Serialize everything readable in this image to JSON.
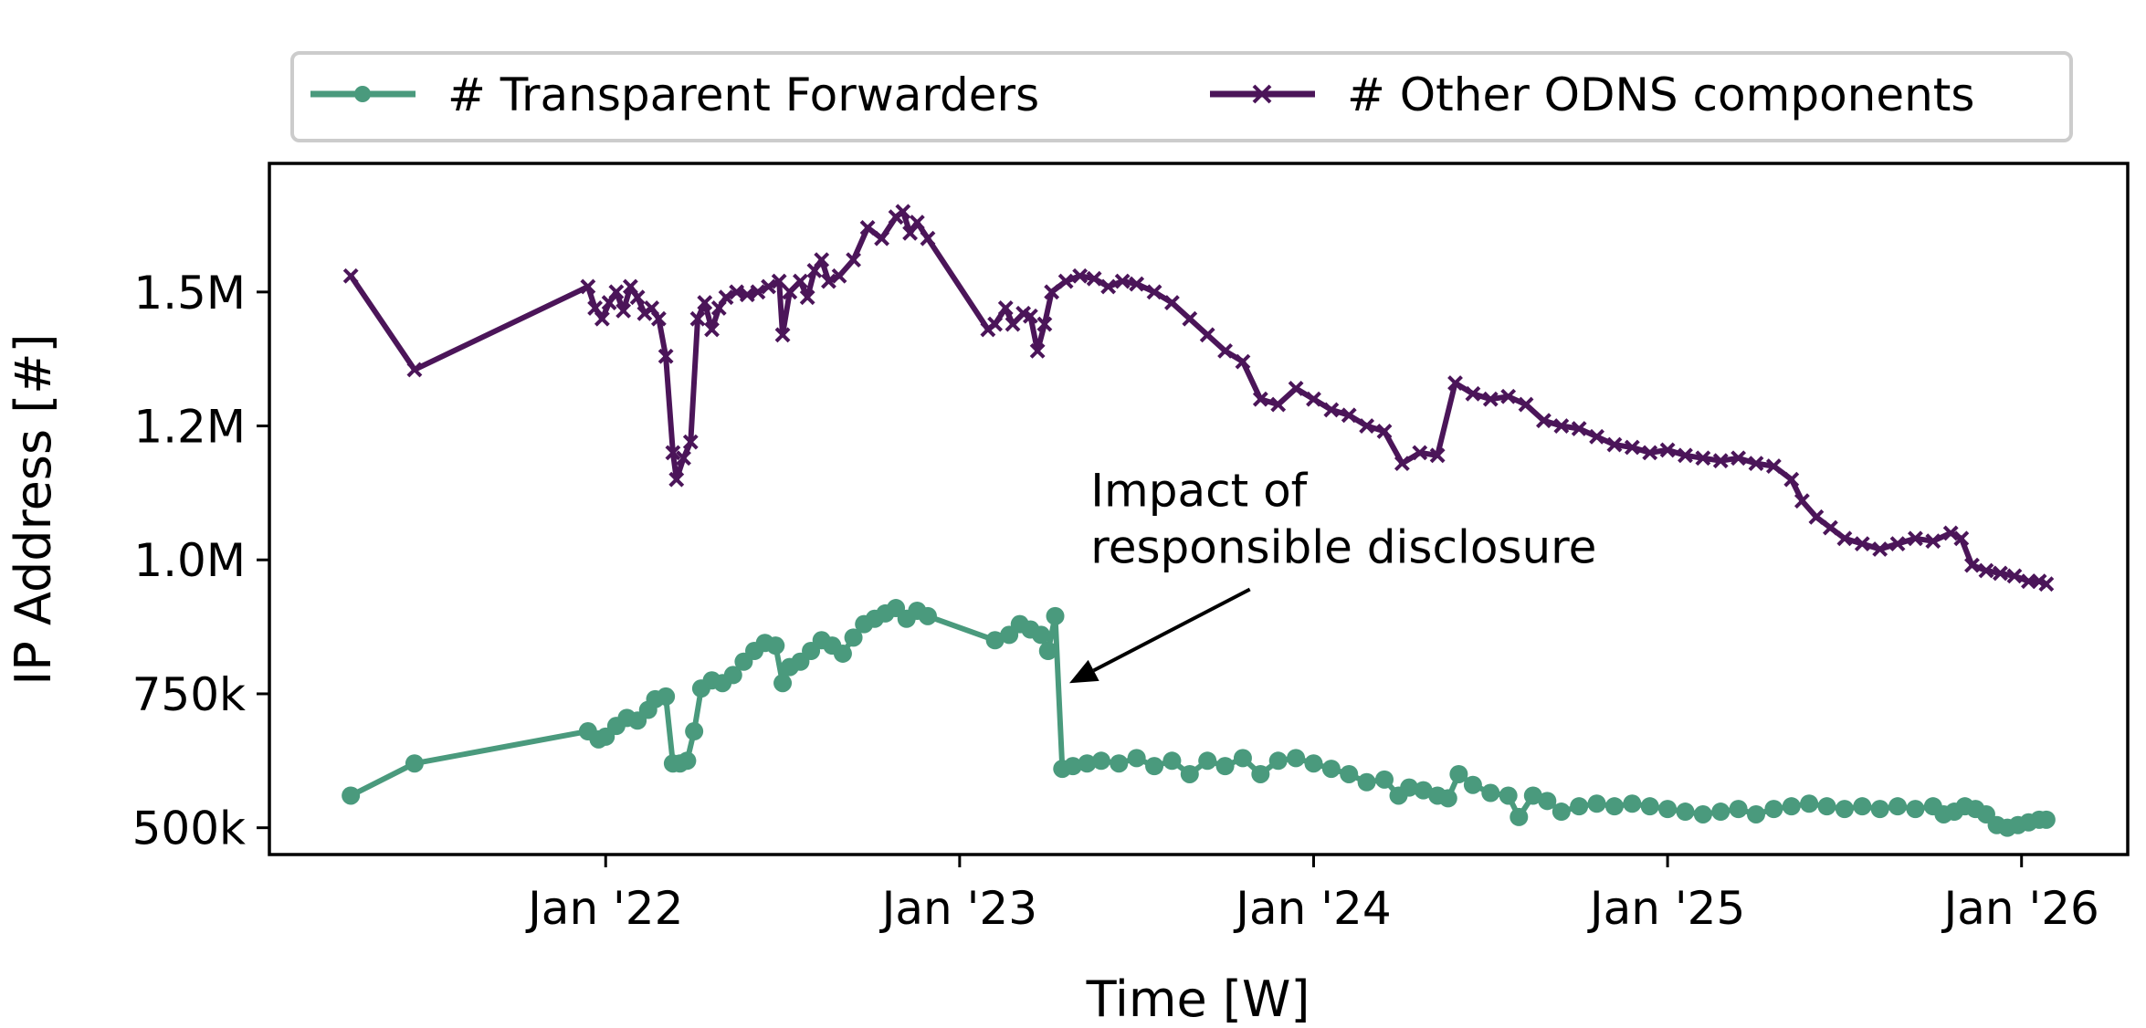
{
  "chart_data": {
    "type": "line",
    "title": "",
    "xlabel": "Time [W]",
    "ylabel": "IP Address [#]",
    "xlim": [
      2021.05,
      2026.3
    ],
    "ylim": [
      450000,
      1740000
    ],
    "x_ticks": [
      {
        "value": 2022.0,
        "label": "Jan '22"
      },
      {
        "value": 2023.0,
        "label": "Jan '23"
      },
      {
        "value": 2024.0,
        "label": "Jan '24"
      },
      {
        "value": 2025.0,
        "label": "Jan '25"
      },
      {
        "value": 2026.0,
        "label": "Jan '26"
      }
    ],
    "y_ticks": [
      {
        "value": 500000,
        "label": "500k"
      },
      {
        "value": 750000,
        "label": "750k"
      },
      {
        "value": 1000000,
        "label": "1.0M"
      },
      {
        "value": 1250000,
        "label": "1.2M"
      },
      {
        "value": 1500000,
        "label": "1.5M"
      }
    ],
    "legend_position": "top-center-outside",
    "series": [
      {
        "name": "# Transparent Forwarders",
        "color": "#4a9a7d",
        "marker": "circle",
        "points": [
          [
            2021.28,
            560000
          ],
          [
            2021.46,
            620000
          ],
          [
            2021.95,
            680000
          ],
          [
            2021.98,
            665000
          ],
          [
            2022.0,
            670000
          ],
          [
            2022.03,
            690000
          ],
          [
            2022.06,
            705000
          ],
          [
            2022.09,
            700000
          ],
          [
            2022.12,
            720000
          ],
          [
            2022.14,
            740000
          ],
          [
            2022.17,
            745000
          ],
          [
            2022.19,
            620000
          ],
          [
            2022.21,
            620000
          ],
          [
            2022.23,
            625000
          ],
          [
            2022.25,
            680000
          ],
          [
            2022.27,
            760000
          ],
          [
            2022.3,
            775000
          ],
          [
            2022.33,
            770000
          ],
          [
            2022.36,
            785000
          ],
          [
            2022.39,
            810000
          ],
          [
            2022.42,
            830000
          ],
          [
            2022.45,
            845000
          ],
          [
            2022.48,
            840000
          ],
          [
            2022.5,
            770000
          ],
          [
            2022.52,
            800000
          ],
          [
            2022.55,
            810000
          ],
          [
            2022.58,
            830000
          ],
          [
            2022.61,
            850000
          ],
          [
            2022.64,
            840000
          ],
          [
            2022.67,
            825000
          ],
          [
            2022.7,
            855000
          ],
          [
            2022.73,
            880000
          ],
          [
            2022.76,
            890000
          ],
          [
            2022.79,
            900000
          ],
          [
            2022.82,
            910000
          ],
          [
            2022.85,
            890000
          ],
          [
            2022.88,
            905000
          ],
          [
            2022.91,
            895000
          ],
          [
            2023.1,
            850000
          ],
          [
            2023.14,
            860000
          ],
          [
            2023.17,
            880000
          ],
          [
            2023.2,
            870000
          ],
          [
            2023.23,
            860000
          ],
          [
            2023.25,
            830000
          ],
          [
            2023.27,
            895000
          ],
          [
            2023.29,
            610000
          ],
          [
            2023.32,
            615000
          ],
          [
            2023.36,
            620000
          ],
          [
            2023.4,
            625000
          ],
          [
            2023.45,
            620000
          ],
          [
            2023.5,
            630000
          ],
          [
            2023.55,
            615000
          ],
          [
            2023.6,
            625000
          ],
          [
            2023.65,
            600000
          ],
          [
            2023.7,
            625000
          ],
          [
            2023.75,
            615000
          ],
          [
            2023.8,
            630000
          ],
          [
            2023.85,
            600000
          ],
          [
            2023.9,
            625000
          ],
          [
            2023.95,
            630000
          ],
          [
            2024.0,
            620000
          ],
          [
            2024.05,
            610000
          ],
          [
            2024.1,
            600000
          ],
          [
            2024.15,
            585000
          ],
          [
            2024.2,
            590000
          ],
          [
            2024.24,
            560000
          ],
          [
            2024.27,
            575000
          ],
          [
            2024.31,
            570000
          ],
          [
            2024.35,
            560000
          ],
          [
            2024.38,
            555000
          ],
          [
            2024.41,
            600000
          ],
          [
            2024.45,
            580000
          ],
          [
            2024.5,
            565000
          ],
          [
            2024.55,
            560000
          ],
          [
            2024.58,
            520000
          ],
          [
            2024.62,
            560000
          ],
          [
            2024.66,
            550000
          ],
          [
            2024.7,
            530000
          ],
          [
            2024.75,
            540000
          ],
          [
            2024.8,
            545000
          ],
          [
            2024.85,
            540000
          ],
          [
            2024.9,
            545000
          ],
          [
            2024.95,
            540000
          ],
          [
            2025.0,
            535000
          ],
          [
            2025.05,
            530000
          ],
          [
            2025.1,
            525000
          ],
          [
            2025.15,
            530000
          ],
          [
            2025.2,
            535000
          ],
          [
            2025.25,
            525000
          ],
          [
            2025.3,
            535000
          ],
          [
            2025.35,
            540000
          ],
          [
            2025.4,
            545000
          ],
          [
            2025.45,
            540000
          ],
          [
            2025.5,
            535000
          ],
          [
            2025.55,
            540000
          ],
          [
            2025.6,
            535000
          ],
          [
            2025.65,
            540000
          ],
          [
            2025.7,
            535000
          ],
          [
            2025.75,
            540000
          ],
          [
            2025.78,
            525000
          ],
          [
            2025.81,
            530000
          ],
          [
            2025.84,
            540000
          ],
          [
            2025.87,
            535000
          ],
          [
            2025.9,
            525000
          ],
          [
            2025.93,
            505000
          ],
          [
            2025.96,
            500000
          ],
          [
            2025.99,
            505000
          ],
          [
            2026.02,
            510000
          ],
          [
            2026.05,
            515000
          ],
          [
            2026.07,
            515000
          ]
        ]
      },
      {
        "name": "# Other ODNS components",
        "color": "#4b1559",
        "marker": "x",
        "points": [
          [
            2021.28,
            1530000
          ],
          [
            2021.46,
            1355000
          ],
          [
            2021.95,
            1510000
          ],
          [
            2021.97,
            1470000
          ],
          [
            2021.99,
            1450000
          ],
          [
            2022.01,
            1480000
          ],
          [
            2022.03,
            1500000
          ],
          [
            2022.05,
            1465000
          ],
          [
            2022.07,
            1510000
          ],
          [
            2022.09,
            1490000
          ],
          [
            2022.11,
            1460000
          ],
          [
            2022.13,
            1470000
          ],
          [
            2022.15,
            1450000
          ],
          [
            2022.17,
            1380000
          ],
          [
            2022.19,
            1200000
          ],
          [
            2022.2,
            1150000
          ],
          [
            2022.22,
            1190000
          ],
          [
            2022.24,
            1220000
          ],
          [
            2022.26,
            1450000
          ],
          [
            2022.28,
            1480000
          ],
          [
            2022.3,
            1430000
          ],
          [
            2022.32,
            1470000
          ],
          [
            2022.34,
            1490000
          ],
          [
            2022.37,
            1500000
          ],
          [
            2022.4,
            1495000
          ],
          [
            2022.43,
            1500000
          ],
          [
            2022.46,
            1510000
          ],
          [
            2022.49,
            1520000
          ],
          [
            2022.5,
            1420000
          ],
          [
            2022.52,
            1500000
          ],
          [
            2022.55,
            1520000
          ],
          [
            2022.57,
            1490000
          ],
          [
            2022.59,
            1540000
          ],
          [
            2022.61,
            1560000
          ],
          [
            2022.63,
            1520000
          ],
          [
            2022.66,
            1530000
          ],
          [
            2022.7,
            1560000
          ],
          [
            2022.74,
            1620000
          ],
          [
            2022.78,
            1600000
          ],
          [
            2022.82,
            1640000
          ],
          [
            2022.84,
            1650000
          ],
          [
            2022.86,
            1610000
          ],
          [
            2022.88,
            1630000
          ],
          [
            2022.91,
            1600000
          ],
          [
            2023.08,
            1430000
          ],
          [
            2023.1,
            1440000
          ],
          [
            2023.13,
            1470000
          ],
          [
            2023.15,
            1440000
          ],
          [
            2023.18,
            1460000
          ],
          [
            2023.2,
            1455000
          ],
          [
            2023.22,
            1390000
          ],
          [
            2023.24,
            1440000
          ],
          [
            2023.26,
            1500000
          ],
          [
            2023.3,
            1520000
          ],
          [
            2023.34,
            1530000
          ],
          [
            2023.38,
            1525000
          ],
          [
            2023.42,
            1510000
          ],
          [
            2023.46,
            1520000
          ],
          [
            2023.5,
            1515000
          ],
          [
            2023.55,
            1500000
          ],
          [
            2023.6,
            1480000
          ],
          [
            2023.65,
            1450000
          ],
          [
            2023.7,
            1420000
          ],
          [
            2023.75,
            1390000
          ],
          [
            2023.8,
            1370000
          ],
          [
            2023.85,
            1300000
          ],
          [
            2023.9,
            1290000
          ],
          [
            2023.95,
            1320000
          ],
          [
            2024.0,
            1300000
          ],
          [
            2024.05,
            1280000
          ],
          [
            2024.1,
            1270000
          ],
          [
            2024.15,
            1250000
          ],
          [
            2024.2,
            1240000
          ],
          [
            2024.25,
            1180000
          ],
          [
            2024.3,
            1200000
          ],
          [
            2024.35,
            1195000
          ],
          [
            2024.4,
            1330000
          ],
          [
            2024.45,
            1310000
          ],
          [
            2024.5,
            1300000
          ],
          [
            2024.55,
            1305000
          ],
          [
            2024.6,
            1290000
          ],
          [
            2024.65,
            1260000
          ],
          [
            2024.7,
            1250000
          ],
          [
            2024.75,
            1245000
          ],
          [
            2024.8,
            1230000
          ],
          [
            2024.85,
            1215000
          ],
          [
            2024.9,
            1210000
          ],
          [
            2024.95,
            1200000
          ],
          [
            2025.0,
            1205000
          ],
          [
            2025.05,
            1195000
          ],
          [
            2025.1,
            1190000
          ],
          [
            2025.15,
            1185000
          ],
          [
            2025.2,
            1190000
          ],
          [
            2025.25,
            1180000
          ],
          [
            2025.3,
            1175000
          ],
          [
            2025.35,
            1150000
          ],
          [
            2025.38,
            1110000
          ],
          [
            2025.42,
            1080000
          ],
          [
            2025.46,
            1060000
          ],
          [
            2025.5,
            1040000
          ],
          [
            2025.55,
            1030000
          ],
          [
            2025.6,
            1020000
          ],
          [
            2025.65,
            1030000
          ],
          [
            2025.7,
            1040000
          ],
          [
            2025.75,
            1035000
          ],
          [
            2025.8,
            1050000
          ],
          [
            2025.83,
            1040000
          ],
          [
            2025.86,
            990000
          ],
          [
            2025.9,
            980000
          ],
          [
            2025.94,
            975000
          ],
          [
            2025.98,
            970000
          ],
          [
            2026.02,
            960000
          ],
          [
            2026.05,
            960000
          ],
          [
            2026.07,
            955000
          ]
        ]
      }
    ],
    "annotation": {
      "text_lines": [
        "Impact of",
        "responsible disclosure"
      ],
      "target": [
        2023.31,
        770000
      ],
      "text_anchor_point": [
        2023.37,
        1100000
      ],
      "arrow_start": [
        2023.82,
        945000
      ]
    }
  }
}
